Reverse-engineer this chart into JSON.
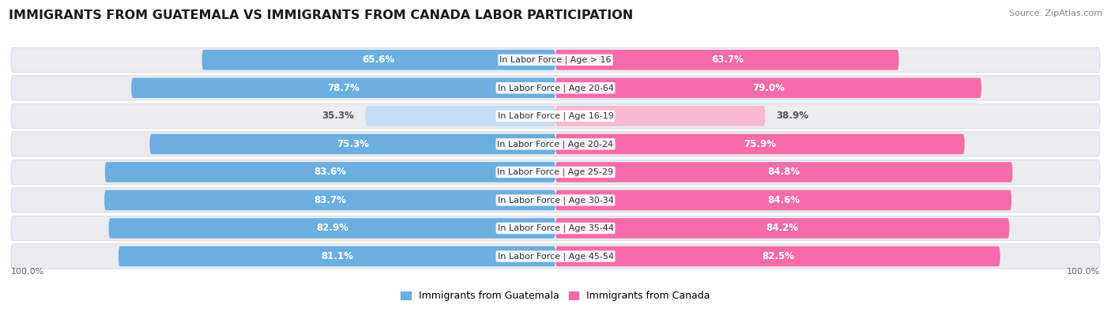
{
  "title": "IMMIGRANTS FROM GUATEMALA VS IMMIGRANTS FROM CANADA LABOR PARTICIPATION",
  "source": "Source: ZipAtlas.com",
  "categories": [
    "In Labor Force | Age > 16",
    "In Labor Force | Age 20-64",
    "In Labor Force | Age 16-19",
    "In Labor Force | Age 20-24",
    "In Labor Force | Age 25-29",
    "In Labor Force | Age 30-34",
    "In Labor Force | Age 35-44",
    "In Labor Force | Age 45-54"
  ],
  "guatemala_values": [
    65.6,
    78.7,
    35.3,
    75.3,
    83.6,
    83.7,
    82.9,
    81.1
  ],
  "canada_values": [
    63.7,
    79.0,
    38.9,
    75.9,
    84.8,
    84.6,
    84.2,
    82.5
  ],
  "guatemala_color_strong": "#6aafe0",
  "guatemala_color_light": "#c5ddf2",
  "canada_color_strong": "#f76ca8",
  "canada_color_light": "#f9b8d3",
  "row_bg_color": "#ebebf0",
  "label_white": "#ffffff",
  "label_dark": "#555555",
  "legend_guatemala": "Immigrants from Guatemala",
  "legend_canada": "Immigrants from Canada",
  "title_fontsize": 11.5,
  "bar_label_fontsize": 8.5,
  "category_fontsize": 8.0,
  "legend_fontsize": 9,
  "axis_label_fontsize": 8,
  "source_fontsize": 8
}
